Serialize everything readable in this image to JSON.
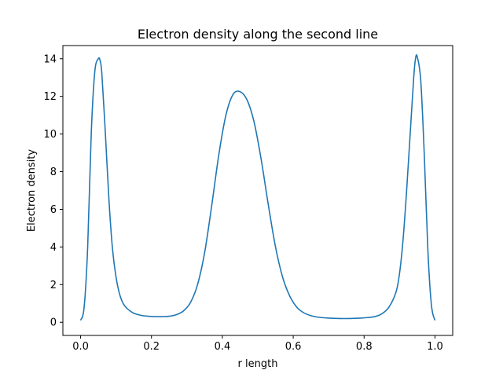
{
  "chart_data": {
    "type": "line",
    "title": "Electron density along the second line",
    "xlabel": "r length",
    "ylabel": "Electron density",
    "xlim": [
      -0.05,
      1.05
    ],
    "ylim": [
      -0.7,
      14.7
    ],
    "xticks": [
      0.0,
      0.2,
      0.4,
      0.6,
      0.8,
      1.0
    ],
    "xtick_labels": [
      "0.0",
      "0.2",
      "0.4",
      "0.6",
      "0.8",
      "1.0"
    ],
    "yticks": [
      0,
      2,
      4,
      6,
      8,
      10,
      12,
      14
    ],
    "ytick_labels": [
      "0",
      "2",
      "4",
      "6",
      "8",
      "10",
      "12",
      "14"
    ],
    "grid": false,
    "series": [
      {
        "color": "#1f77b4",
        "x": [
          0.0,
          0.01,
          0.02,
          0.03,
          0.04,
          0.05,
          0.055,
          0.06,
          0.07,
          0.08,
          0.09,
          0.1,
          0.11,
          0.12,
          0.13,
          0.14,
          0.15,
          0.17,
          0.19,
          0.21,
          0.23,
          0.25,
          0.27,
          0.29,
          0.31,
          0.33,
          0.35,
          0.37,
          0.39,
          0.41,
          0.43,
          0.45,
          0.47,
          0.49,
          0.51,
          0.53,
          0.55,
          0.57,
          0.59,
          0.61,
          0.63,
          0.65,
          0.67,
          0.7,
          0.73,
          0.76,
          0.79,
          0.81,
          0.83,
          0.85,
          0.87,
          0.89,
          0.9,
          0.91,
          0.92,
          0.93,
          0.94,
          0.945,
          0.95,
          0.96,
          0.97,
          0.98,
          0.99,
          1.0
        ],
        "y": [
          0.1,
          0.8,
          4.0,
          10.0,
          13.3,
          14.0,
          13.9,
          13.2,
          10.0,
          6.5,
          3.9,
          2.4,
          1.5,
          1.0,
          0.75,
          0.6,
          0.48,
          0.37,
          0.32,
          0.3,
          0.3,
          0.32,
          0.4,
          0.6,
          1.05,
          2.0,
          3.7,
          6.2,
          8.9,
          11.0,
          12.1,
          12.25,
          11.8,
          10.6,
          8.6,
          6.2,
          4.0,
          2.4,
          1.4,
          0.8,
          0.5,
          0.35,
          0.27,
          0.22,
          0.2,
          0.2,
          0.22,
          0.25,
          0.3,
          0.45,
          0.8,
          1.6,
          2.6,
          4.4,
          7.0,
          10.0,
          13.0,
          14.0,
          14.1,
          12.8,
          8.8,
          3.8,
          0.9,
          0.1
        ]
      }
    ]
  }
}
